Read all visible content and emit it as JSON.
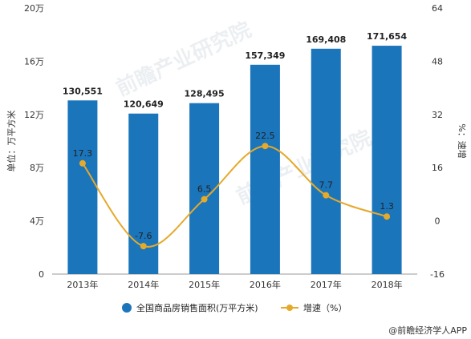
{
  "chart_data": {
    "type": "bar",
    "categories": [
      "2013年",
      "2014年",
      "2015年",
      "2016年",
      "2017年",
      "2018年"
    ],
    "series": [
      {
        "name": "全国商品房销售面积(万平方米)",
        "type": "bar",
        "axis": "left",
        "color": "#1b75bb",
        "values": [
          130551,
          120649,
          128495,
          157349,
          169408,
          171654
        ],
        "labels": [
          "130,551",
          "120,649",
          "128,495",
          "157,349",
          "169,408",
          "171,654"
        ]
      },
      {
        "name": "增速（%）",
        "type": "line",
        "axis": "right",
        "color": "#e6a92a",
        "values": [
          17.3,
          -7.6,
          6.5,
          22.5,
          7.7,
          1.3
        ],
        "labels": [
          "17.3",
          "-7.6",
          "6.5",
          "22.5",
          "7.7",
          "1.3"
        ]
      }
    ],
    "ylabel": "单位：万平方米",
    "y2label": "%：速增",
    "ylim": [
      0,
      200000
    ],
    "y2lim": [
      -16,
      64
    ],
    "yticks": [
      0,
      40000,
      80000,
      120000,
      160000,
      200000
    ],
    "ytick_labels": [
      "0",
      "4万",
      "8万",
      "12万",
      "16万",
      "20万"
    ],
    "y2ticks": [
      -16,
      0,
      16,
      32,
      48,
      64
    ],
    "y2tick_labels": [
      "-16",
      "0",
      "16",
      "32",
      "48",
      "64"
    ],
    "grid": false,
    "legend_position": "bottom"
  },
  "source_text": "@前瞻经济学人APP"
}
